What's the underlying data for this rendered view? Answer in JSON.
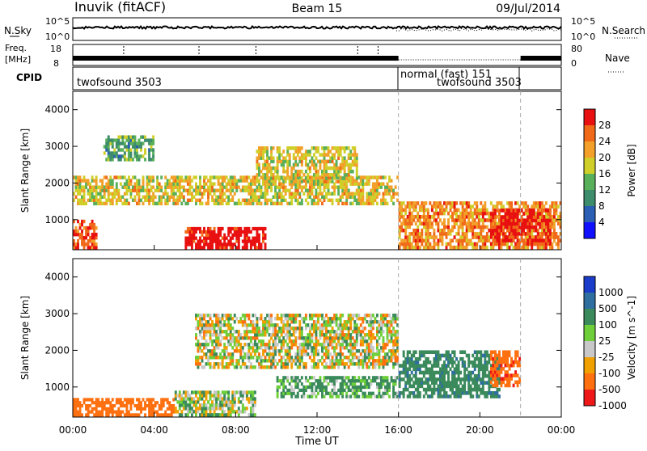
{
  "header": {
    "station": "Inuvik (fitACF)",
    "beam": "Beam 15",
    "date": "09/Jul/2014"
  },
  "nsky_panel": {
    "left_label": "N.Sky",
    "right_label": "N.Search",
    "y_top_label": "10^5",
    "y_bottom_label": "10^0",
    "r_top_label": "10^5",
    "r_bottom_label": "10^0"
  },
  "freq_panel": {
    "left_label_1": "Freq.",
    "left_label_2": "[MHz]",
    "right_label": "Nave",
    "y_top": "18",
    "y_bottom": "8",
    "r_top": "80",
    "r_bottom": "0"
  },
  "cpid_panel": {
    "label": "CPID",
    "segments": [
      {
        "text": "twofsound 3503",
        "start_hour": 0
      },
      {
        "text": "normal (fast) 151",
        "start_hour": 16
      },
      {
        "text": "twofsound 3503",
        "start_hour": 16
      }
    ]
  },
  "time_axis": {
    "label": "Time UT",
    "ticks": [
      "00:00",
      "04:00",
      "08:00",
      "12:00",
      "16:00",
      "20:00",
      "00:00"
    ]
  },
  "power_panel": {
    "ylabel": "Slant Range [km]",
    "yticks": [
      "1000",
      "2000",
      "3000",
      "4000"
    ],
    "cbar_label": "Power [dB]",
    "cbar_ticks": [
      "4",
      "8",
      "12",
      "16",
      "20",
      "24",
      "28"
    ],
    "cbar_colors": [
      "#1010ff",
      "#2a5fb4",
      "#3d8c6c",
      "#59b05a",
      "#d0cf2a",
      "#f2a02a",
      "#f06a1a",
      "#e81010"
    ]
  },
  "velocity_panel": {
    "ylabel": "Slant Range [km]",
    "yticks": [
      "1000",
      "2000",
      "3000",
      "4000"
    ],
    "cbar_label": "Velocity [m s^-1]",
    "cbar_ticks": [
      "1000",
      "500",
      "100",
      "25",
      "-25",
      "-100",
      "-500",
      "-1000"
    ],
    "cbar_colors": [
      "#1a3cc8",
      "#2e6fa0",
      "#3a8a5c",
      "#6fcf3a",
      "#c8c8c8",
      "#f0a000",
      "#ff7010",
      "#ee1818"
    ]
  },
  "chart_data": [
    {
      "type": "heatmap",
      "title": "Power",
      "xlabel": "Time UT",
      "ylabel": "Slant Range [km]",
      "x_range_hours": [
        0,
        24
      ],
      "y_range_km": [
        180,
        4500
      ],
      "colorbar": {
        "label": "Power [dB]",
        "range": [
          0,
          30
        ],
        "ticks": [
          4,
          8,
          12,
          16,
          20,
          24,
          28
        ]
      },
      "dashed_markers_hours": [
        16,
        22
      ],
      "regions": [
        {
          "t": [
            0,
            1.2
          ],
          "r": [
            200,
            1000
          ],
          "db": 26
        },
        {
          "t": [
            5.5,
            9.5
          ],
          "r": [
            200,
            800
          ],
          "db": 30
        },
        {
          "t": [
            0,
            16
          ],
          "r": [
            1400,
            2200
          ],
          "db": 18
        },
        {
          "t": [
            1.5,
            4
          ],
          "r": [
            2600,
            3300
          ],
          "db": 12
        },
        {
          "t": [
            9,
            14
          ],
          "r": [
            2000,
            3000
          ],
          "db": 18
        },
        {
          "t": [
            16,
            24
          ],
          "r": [
            200,
            1500
          ],
          "db": 22
        },
        {
          "t": [
            20.5,
            23.5
          ],
          "r": [
            300,
            1300
          ],
          "db": 28
        }
      ]
    },
    {
      "type": "heatmap",
      "title": "Velocity",
      "xlabel": "Time UT",
      "ylabel": "Slant Range [km]",
      "x_range_hours": [
        0,
        24
      ],
      "y_range_km": [
        180,
        4500
      ],
      "colorbar": {
        "label": "Velocity [m s^-1]",
        "ticks": [
          1000,
          500,
          100,
          25,
          -25,
          -100,
          -500,
          -1000
        ]
      },
      "dashed_markers_hours": [
        16,
        22
      ],
      "regions": [
        {
          "t": [
            0,
            5
          ],
          "r": [
            200,
            700
          ],
          "v": -300
        },
        {
          "t": [
            5,
            9
          ],
          "r": [
            200,
            900
          ],
          "v": 60
        },
        {
          "t": [
            6,
            16
          ],
          "r": [
            1500,
            3000
          ],
          "v": 0
        },
        {
          "t": [
            10,
            16
          ],
          "r": [
            700,
            1300
          ],
          "v": 150
        },
        {
          "t": [
            16,
            21
          ],
          "r": [
            700,
            2000
          ],
          "v": 400
        },
        {
          "t": [
            20.5,
            22
          ],
          "r": [
            1000,
            2000
          ],
          "v": -400
        }
      ]
    }
  ]
}
